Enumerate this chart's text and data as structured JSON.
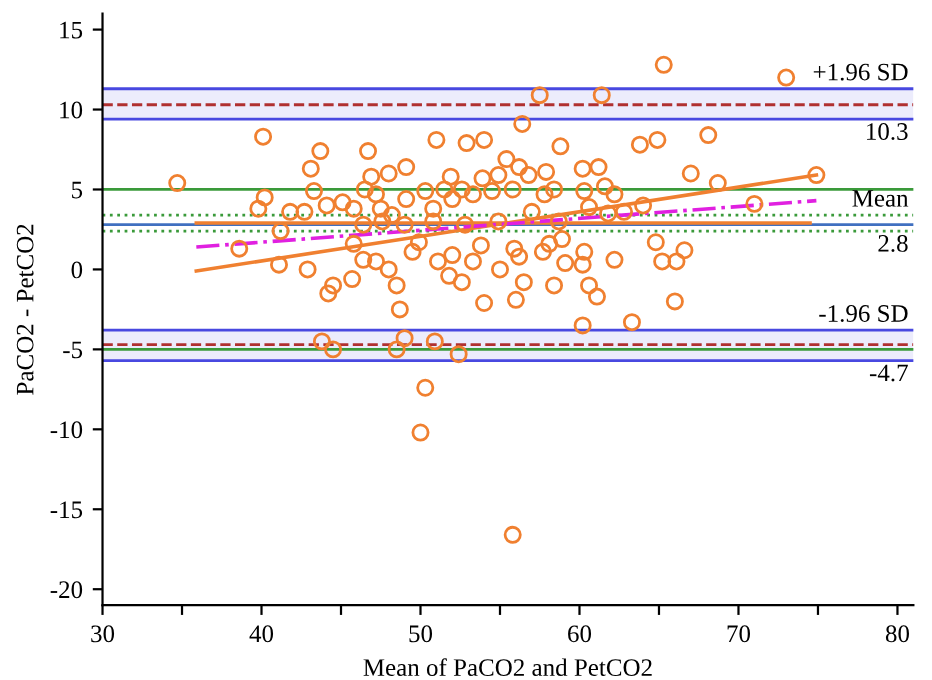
{
  "chart_data": {
    "type": "scatter",
    "xlabel": "Mean of PaCO2 and PetCO2",
    "ylabel": "PaCO2 - PetCO2",
    "xlim": [
      30,
      81
    ],
    "ylim": [
      -21,
      16
    ],
    "xticks": [
      30,
      {
        "value": 35,
        "label": null
      },
      40,
      {
        "value": 45,
        "label": null
      },
      50,
      {
        "value": 55,
        "label": null
      },
      60,
      {
        "value": 65,
        "label": null
      },
      70,
      {
        "value": 75,
        "label": null
      },
      80
    ],
    "yticks": [
      -20,
      -15,
      -10,
      -5,
      0,
      5,
      10,
      15
    ],
    "grid": false,
    "series": [
      {
        "color": "#f08030",
        "marker": "circle",
        "x": [
          73.0,
          65.3,
          57.5,
          61.4,
          56.4,
          40.1,
          43.7,
          46.7,
          43.1,
          51.0,
          52.9,
          54.0,
          55.4,
          34.7,
          40.2,
          39.8,
          43.3,
          46.9,
          48.0,
          49.1,
          51.9,
          53.9,
          54.9,
          56.2,
          46.5,
          47.2,
          49.1,
          50.3,
          51.5,
          52.6,
          41.8,
          42.7,
          44.1,
          45.1,
          45.8,
          47.5,
          48.2,
          50.8,
          52.0,
          53.3,
          54.5,
          55.8,
          41.2,
          46.4,
          47.6,
          49.0,
          50.8,
          52.8,
          54.9,
          38.6,
          41.1,
          42.9,
          44.5,
          44.2,
          45.8,
          45.7,
          46.4,
          47.2,
          48.0,
          48.5,
          48.7,
          49.5,
          49.9,
          51.1,
          51.8,
          52.0,
          52.6,
          53.3,
          53.8,
          54.0,
          55.0,
          55.9,
          56.0,
          63.8,
          64.9,
          68.1,
          58.8,
          67.0,
          68.7,
          74.9,
          60.2,
          61.2,
          57.9,
          56.8,
          58.4,
          60.3,
          61.6,
          62.2,
          57.8,
          60.6,
          61.8,
          62.8,
          64.0,
          71.0,
          57.0,
          58.7,
          58.9,
          58.1,
          57.7,
          56.2,
          60.3,
          64.8,
          66.6,
          65.2,
          66.1,
          62.2,
          59.1,
          60.2,
          56.5,
          58.4,
          60.6,
          61.1,
          66.0,
          60.2,
          63.3,
          43.8,
          44.5,
          48.5,
          49.0,
          50.9,
          52.4,
          50.3,
          50.0,
          55.8
        ],
        "values": [
          12.0,
          12.8,
          10.9,
          10.9,
          9.1,
          8.3,
          7.4,
          7.4,
          6.3,
          8.1,
          7.9,
          8.1,
          6.9,
          5.4,
          4.5,
          3.8,
          4.9,
          5.8,
          6.0,
          6.4,
          5.8,
          5.7,
          5.9,
          6.4,
          5.0,
          4.7,
          4.4,
          4.9,
          5.0,
          5.0,
          3.6,
          3.6,
          4.0,
          4.2,
          3.8,
          3.8,
          3.4,
          3.8,
          4.4,
          4.7,
          4.9,
          5.0,
          2.4,
          2.8,
          3.0,
          2.8,
          3.0,
          2.8,
          3.0,
          1.3,
          0.3,
          0.0,
          -1.0,
          -1.5,
          1.6,
          -0.6,
          0.6,
          0.5,
          0.0,
          -1.0,
          -2.5,
          1.1,
          1.7,
          0.5,
          -0.4,
          0.9,
          -0.8,
          0.5,
          1.5,
          -2.1,
          0.0,
          1.3,
          -1.9,
          7.8,
          8.1,
          8.4,
          7.7,
          6.0,
          5.4,
          5.9,
          6.3,
          6.4,
          6.1,
          5.9,
          5.0,
          4.9,
          5.2,
          4.7,
          4.7,
          3.9,
          3.5,
          3.6,
          4.0,
          4.1,
          3.6,
          3.0,
          1.9,
          1.6,
          1.1,
          0.8,
          1.1,
          1.7,
          1.2,
          0.5,
          0.5,
          0.6,
          0.4,
          0.3,
          -0.8,
          -1.0,
          -1.0,
          -1.7,
          -2.0,
          -3.5,
          -3.3,
          -4.5,
          -5.0,
          -5.0,
          -4.3,
          -4.5,
          -5.3,
          -7.4,
          -10.2,
          -16.6
        ]
      },
      {
        "type": "line",
        "color": "#f08030",
        "line_style": "solid",
        "x": [
          35.9,
          74.9
        ],
        "values": [
          -0.1,
          5.9
        ]
      },
      {
        "type": "line",
        "color": "#f08030",
        "line_style": "solid",
        "x": [
          35.9,
          74.5
        ],
        "values": [
          2.9,
          2.9
        ]
      },
      {
        "type": "line",
        "color": "#e020e0",
        "line_style": "dashdot",
        "x": [
          35.9,
          74.9
        ],
        "values": [
          1.4,
          4.3
        ]
      }
    ],
    "bands": [
      {
        "axis": "y",
        "from": 9.4,
        "to": 11.3,
        "color": "#4848e0"
      },
      {
        "axis": "y",
        "from": -5.7,
        "to": -3.8,
        "color": "#4848e0"
      }
    ],
    "ref_lines": [
      {
        "axis": "y",
        "value": 10.3,
        "label": "+1.96 SD",
        "color": "#b03030",
        "line_style": "dashed"
      },
      {
        "axis": "y",
        "value": 2.8,
        "label": "Mean",
        "color": "#4070c0",
        "line_style": "solid"
      },
      {
        "axis": "y",
        "value": -4.7,
        "label": "-1.96 SD",
        "color": "#b03030",
        "line_style": "dashed"
      },
      {
        "axis": "y",
        "value": 11.3,
        "color": "#4848e0",
        "line_style": "solid"
      },
      {
        "axis": "y",
        "value": 9.4,
        "color": "#4848e0",
        "line_style": "solid"
      },
      {
        "axis": "y",
        "value": -3.8,
        "color": "#4848e0",
        "line_style": "solid"
      },
      {
        "axis": "y",
        "value": -5.7,
        "color": "#4848e0",
        "line_style": "solid"
      },
      {
        "axis": "y",
        "value": 3.4,
        "color": "#3a9a3a",
        "line_style": "dotted"
      },
      {
        "axis": "y",
        "value": 2.4,
        "color": "#3a9a3a",
        "line_style": "dotted"
      },
      {
        "axis": "y",
        "value": 5,
        "color": "#3a9a3a",
        "line_style": "solid"
      },
      {
        "axis": "y",
        "value": -5,
        "color": "#3a9a3a",
        "line_style": "solid"
      }
    ],
    "annotations": [
      "10.3",
      "2.8",
      "-4.7"
    ]
  }
}
